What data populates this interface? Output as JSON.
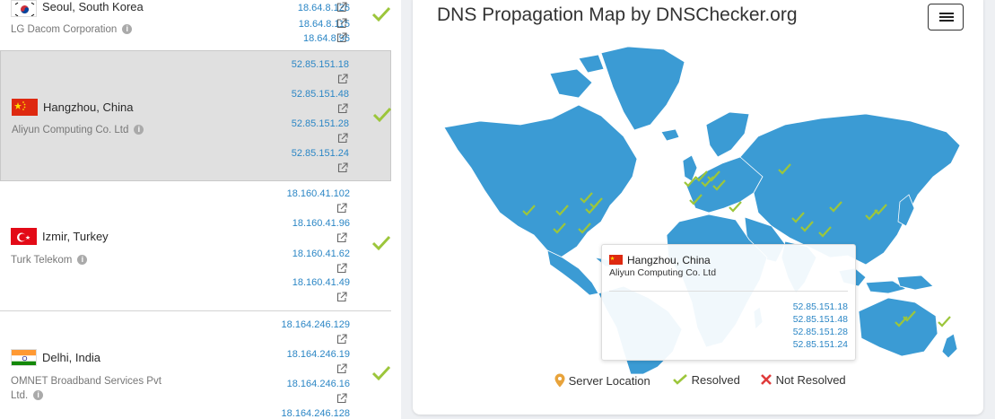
{
  "servers": [
    {
      "city": "Seoul, South Korea",
      "isp": "LG Dacom Corporation",
      "flag": "south-korea",
      "ips": [
        "18.64.8.126",
        "18.64.8.115",
        "18.64.8.96"
      ],
      "status": "resolved"
    },
    {
      "city": "Hangzhou, China",
      "isp": "Aliyun Computing Co. Ltd",
      "flag": "china",
      "ips": [
        "52.85.151.18",
        "52.85.151.48",
        "52.85.151.28",
        "52.85.151.24"
      ],
      "status": "resolved",
      "selected": true
    },
    {
      "city": "Izmir, Turkey",
      "isp": "Turk Telekom",
      "flag": "turkey",
      "ips": [
        "18.160.41.102",
        "18.160.41.96",
        "18.160.41.62",
        "18.160.41.49"
      ],
      "status": "resolved"
    },
    {
      "city": "Delhi, India",
      "isp": "OMNET Broadband Services Pvt Ltd.",
      "flag": "india",
      "ips": [
        "18.164.246.129",
        "18.164.246.19",
        "18.164.246.16",
        "18.164.246.128"
      ],
      "status": "resolved"
    }
  ],
  "map": {
    "title": "DNS Propagation Map by DNSChecker.org",
    "ocean_color": "#ffffff",
    "land_color": "#3b9bd4",
    "check_color": "#9cc63b",
    "tooltip": {
      "city": "Hangzhou, China",
      "isp": "Aliyun Computing Co. Ltd",
      "ips": [
        "52.85.151.18",
        "52.85.151.48",
        "52.85.151.28",
        "52.85.151.24"
      ]
    },
    "legend": {
      "server_location": "Server Location",
      "resolved": "Resolved",
      "not_resolved": "Not Resolved"
    },
    "icons": [
      "menu-icon",
      "location-pin-icon",
      "check-icon",
      "cross-icon",
      "external-link-icon",
      "info-icon"
    ]
  }
}
